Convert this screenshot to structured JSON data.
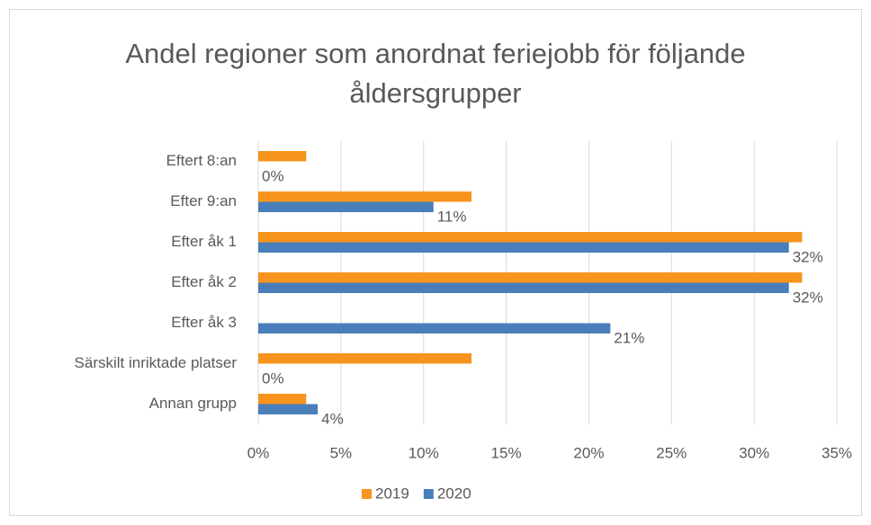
{
  "chart_data": {
    "type": "hbar",
    "title": "Andel regioner som anordnat feriejobb för följande åldersgrupper",
    "categories": [
      "Eftert 8:an",
      "Efter 9:an",
      "Efter åk 1",
      "Efter åk 2",
      "Efter åk 3",
      "Särskilt inriktade platser",
      "Annan grupp"
    ],
    "series": [
      {
        "name": "2019",
        "color": "#f7941d",
        "values": [
          2.9,
          12.9,
          32.9,
          32.9,
          0,
          12.9,
          2.9
        ]
      },
      {
        "name": "2020",
        "color": "#4a7ebb",
        "values": [
          0,
          10.6,
          32.1,
          32.1,
          21.3,
          0,
          3.6
        ],
        "value_labels": [
          "0%",
          "11%",
          "32%",
          "32%",
          "21%",
          "0%",
          "4%"
        ]
      }
    ],
    "xlim": [
      0,
      35
    ],
    "xticks": [
      {
        "value": 0,
        "label": "0%"
      },
      {
        "value": 5,
        "label": "5%"
      },
      {
        "value": 10,
        "label": "10%"
      },
      {
        "value": 15,
        "label": "15%"
      },
      {
        "value": 20,
        "label": "20%"
      },
      {
        "value": 25,
        "label": "25%"
      },
      {
        "value": 30,
        "label": "30%"
      },
      {
        "value": 35,
        "label": "35%"
      }
    ],
    "grid": true,
    "legend": "bottom"
  }
}
